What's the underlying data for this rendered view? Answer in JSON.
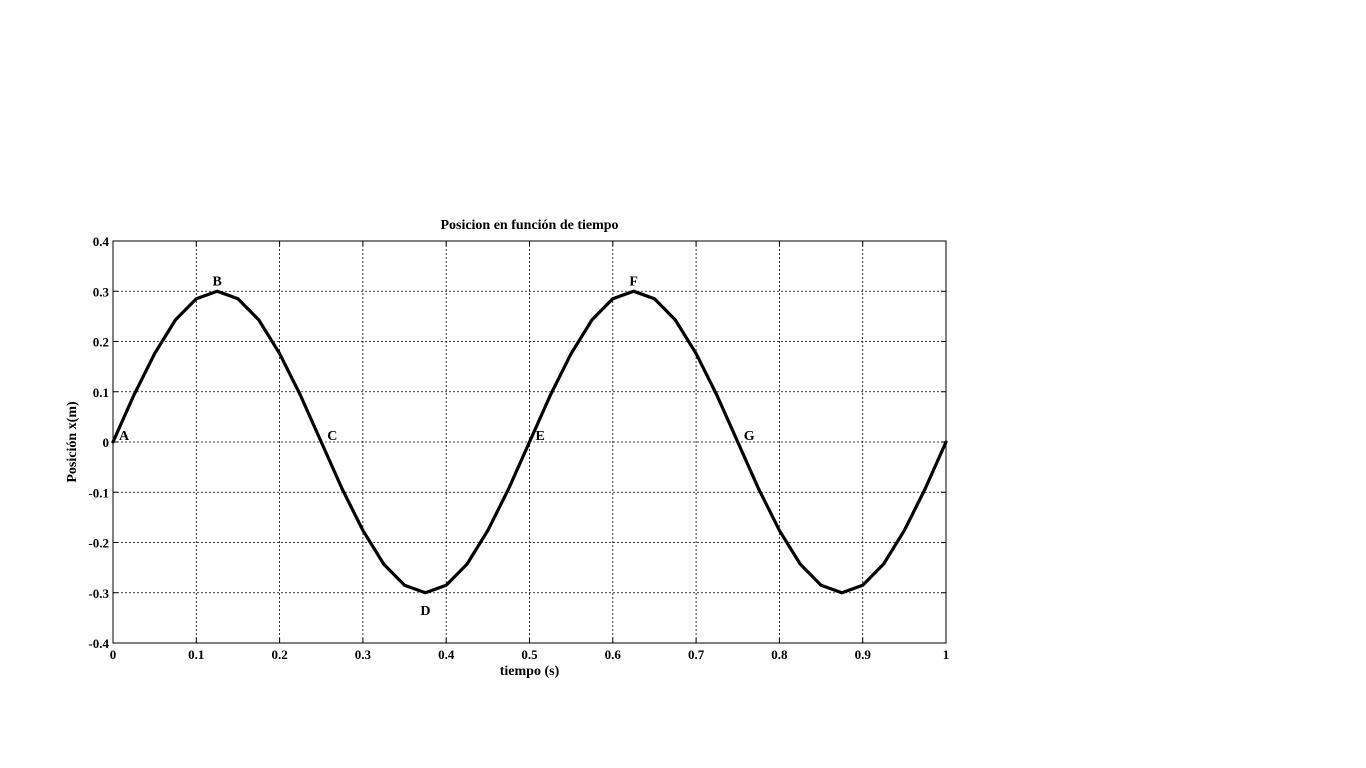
{
  "chart_data": {
    "type": "line",
    "title": "Posicion en función de tiempo",
    "xlabel": "tiempo (s)",
    "ylabel": "Posición x(m)",
    "xlim": [
      0,
      1
    ],
    "ylim": [
      -0.4,
      0.4
    ],
    "grid": true,
    "x_ticks": [
      "0",
      "0.1",
      "0.2",
      "0.3",
      "0.4",
      "0.5",
      "0.6",
      "0.7",
      "0.8",
      "0.9",
      "1"
    ],
    "y_ticks": [
      "0.4",
      "0.3",
      "0.2",
      "0.1",
      "0",
      "-0.1",
      "-0.2",
      "-0.3",
      "-0.4"
    ],
    "series": [
      {
        "x": [
          0,
          0.025,
          0.05,
          0.075,
          0.1,
          0.125,
          0.15,
          0.175,
          0.2,
          0.225,
          0.25,
          0.275,
          0.3,
          0.325,
          0.35,
          0.375,
          0.4,
          0.425,
          0.45,
          0.475,
          0.5,
          0.525,
          0.55,
          0.575,
          0.6,
          0.625,
          0.65,
          0.675,
          0.7,
          0.725,
          0.75,
          0.775,
          0.8,
          0.825,
          0.85,
          0.875,
          0.9,
          0.925,
          0.95,
          0.975,
          1
        ],
        "y": [
          0,
          0.093,
          0.176,
          0.243,
          0.285,
          0.3,
          0.285,
          0.243,
          0.176,
          0.093,
          0,
          -0.093,
          -0.176,
          -0.243,
          -0.285,
          -0.3,
          -0.285,
          -0.243,
          -0.176,
          -0.093,
          0,
          0.093,
          0.176,
          0.243,
          0.285,
          0.3,
          0.285,
          0.243,
          0.176,
          0.093,
          0,
          -0.093,
          -0.176,
          -0.243,
          -0.285,
          -0.3,
          -0.285,
          -0.243,
          -0.176,
          -0.093,
          0
        ]
      }
    ],
    "annotations": [
      {
        "text": "A",
        "x": 0,
        "y": 0
      },
      {
        "text": "B",
        "x": 0.125,
        "y": 0.3
      },
      {
        "text": "C",
        "x": 0.25,
        "y": 0
      },
      {
        "text": "D",
        "x": 0.375,
        "y": -0.3
      },
      {
        "text": "E",
        "x": 0.5,
        "y": 0
      },
      {
        "text": "F",
        "x": 0.625,
        "y": 0.3
      },
      {
        "text": "G",
        "x": 0.75,
        "y": 0
      }
    ]
  }
}
